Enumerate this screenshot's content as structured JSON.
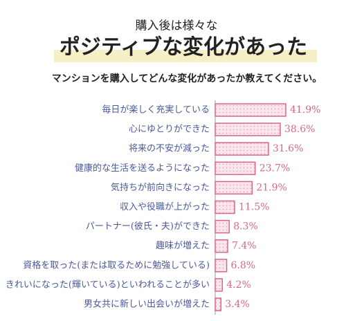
{
  "chart_data": {
    "type": "hbar",
    "title": "購入後は様々な",
    "subtitle": "ポジティブな変化があった",
    "question": "マンションを購入してどんな変化があったか教えてください。",
    "categories": [
      "毎日が楽しく充実している",
      "心にゆとりができた",
      "将来の不安が減った",
      "健康的な生活を送るようになった",
      "気持ちが前向きになった",
      "収入や役職が上がった",
      "パートナー(彼氏・夫)ができた",
      "趣味が増えた",
      "資格を取った(または取るために勉強している)",
      "きれいになった(輝いている)といわれることが多い",
      "男女共に新しい出会いが増えた"
    ],
    "values": [
      41.9,
      38.6,
      31.6,
      23.7,
      21.9,
      11.5,
      8.3,
      7.4,
      6.8,
      4.2,
      3.4
    ],
    "value_labels": [
      "41.9%",
      "38.6%",
      "31.6%",
      "23.7%",
      "21.9%",
      "11.5%",
      "8.3%",
      "7.4%",
      "6.8%",
      "4.2%",
      "3.4%"
    ],
    "color": "#d9668a"
  }
}
